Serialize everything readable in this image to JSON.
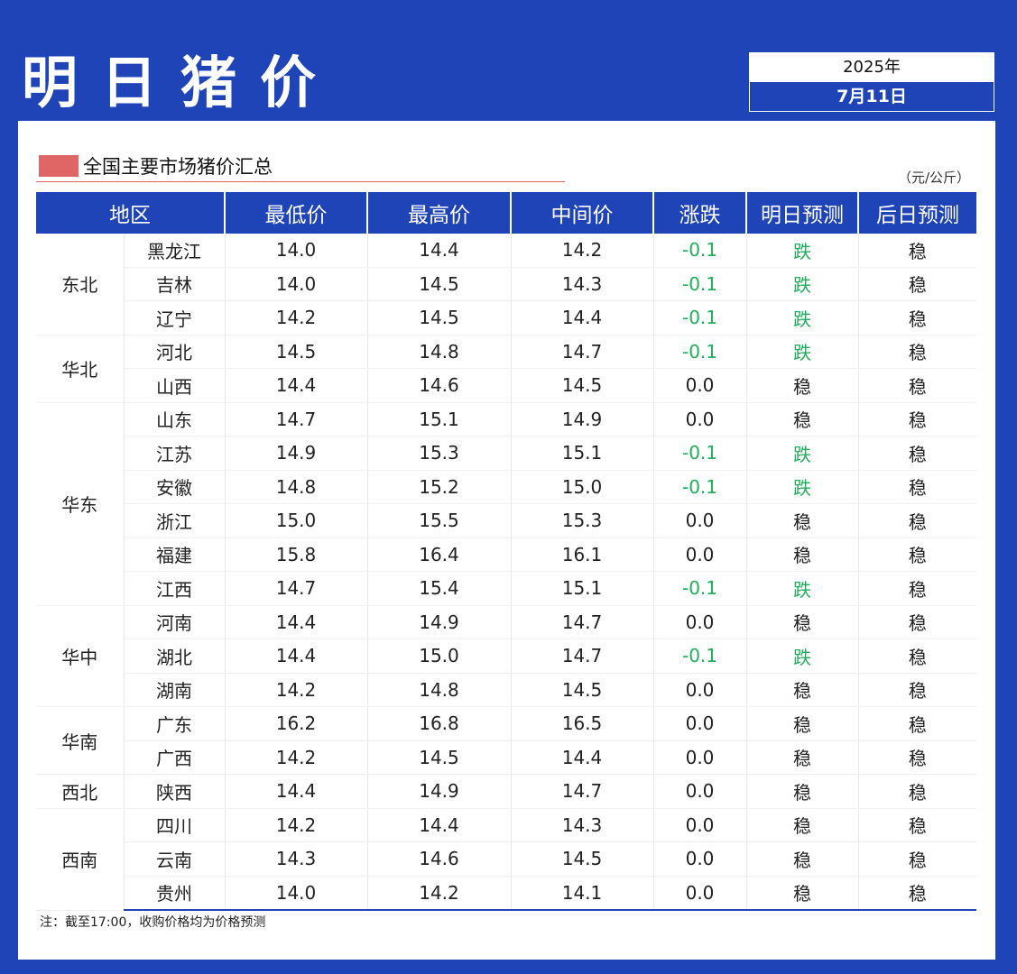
{
  "header": {
    "title": "明日猪价",
    "year": "2025年",
    "date": "7月11日"
  },
  "section": {
    "title": "全国主要市场猪价汇总",
    "unit": "（元/公斤）"
  },
  "columns": [
    "地区",
    "最低价",
    "最高价",
    "中间价",
    "涨跌",
    "明日预测",
    "后日预测"
  ],
  "groups": [
    {
      "region": "东北",
      "rows": [
        {
          "province": "黑龙江",
          "low": "14.0",
          "high": "14.4",
          "mid": "14.2",
          "change": "-0.1",
          "tomorrow": "跌",
          "after": "稳"
        },
        {
          "province": "吉林",
          "low": "14.0",
          "high": "14.5",
          "mid": "14.3",
          "change": "-0.1",
          "tomorrow": "跌",
          "after": "稳"
        },
        {
          "province": "辽宁",
          "low": "14.2",
          "high": "14.5",
          "mid": "14.4",
          "change": "-0.1",
          "tomorrow": "跌",
          "after": "稳"
        }
      ]
    },
    {
      "region": "华北",
      "rows": [
        {
          "province": "河北",
          "low": "14.5",
          "high": "14.8",
          "mid": "14.7",
          "change": "-0.1",
          "tomorrow": "跌",
          "after": "稳"
        },
        {
          "province": "山西",
          "low": "14.4",
          "high": "14.6",
          "mid": "14.5",
          "change": "0.0",
          "tomorrow": "稳",
          "after": "稳"
        }
      ]
    },
    {
      "region": "华东",
      "rows": [
        {
          "province": "山东",
          "low": "14.7",
          "high": "15.1",
          "mid": "14.9",
          "change": "0.0",
          "tomorrow": "稳",
          "after": "稳"
        },
        {
          "province": "江苏",
          "low": "14.9",
          "high": "15.3",
          "mid": "15.1",
          "change": "-0.1",
          "tomorrow": "跌",
          "after": "稳"
        },
        {
          "province": "安徽",
          "low": "14.8",
          "high": "15.2",
          "mid": "15.0",
          "change": "-0.1",
          "tomorrow": "跌",
          "after": "稳"
        },
        {
          "province": "浙江",
          "low": "15.0",
          "high": "15.5",
          "mid": "15.3",
          "change": "0.0",
          "tomorrow": "稳",
          "after": "稳"
        },
        {
          "province": "福建",
          "low": "15.8",
          "high": "16.4",
          "mid": "16.1",
          "change": "0.0",
          "tomorrow": "稳",
          "after": "稳"
        },
        {
          "province": "江西",
          "low": "14.7",
          "high": "15.4",
          "mid": "15.1",
          "change": "-0.1",
          "tomorrow": "跌",
          "after": "稳"
        }
      ]
    },
    {
      "region": "华中",
      "rows": [
        {
          "province": "河南",
          "low": "14.4",
          "high": "14.9",
          "mid": "14.7",
          "change": "0.0",
          "tomorrow": "稳",
          "after": "稳"
        },
        {
          "province": "湖北",
          "low": "14.4",
          "high": "15.0",
          "mid": "14.7",
          "change": "-0.1",
          "tomorrow": "跌",
          "after": "稳"
        },
        {
          "province": "湖南",
          "low": "14.2",
          "high": "14.8",
          "mid": "14.5",
          "change": "0.0",
          "tomorrow": "稳",
          "after": "稳"
        }
      ]
    },
    {
      "region": "华南",
      "rows": [
        {
          "province": "广东",
          "low": "16.2",
          "high": "16.8",
          "mid": "16.5",
          "change": "0.0",
          "tomorrow": "稳",
          "after": "稳"
        },
        {
          "province": "广西",
          "low": "14.2",
          "high": "14.5",
          "mid": "14.4",
          "change": "0.0",
          "tomorrow": "稳",
          "after": "稳"
        }
      ]
    },
    {
      "region": "西北",
      "rows": [
        {
          "province": "陕西",
          "low": "14.4",
          "high": "14.9",
          "mid": "14.7",
          "change": "0.0",
          "tomorrow": "稳",
          "after": "稳"
        }
      ]
    },
    {
      "region": "西南",
      "rows": [
        {
          "province": "四川",
          "low": "14.2",
          "high": "14.4",
          "mid": "14.3",
          "change": "0.0",
          "tomorrow": "稳",
          "after": "稳"
        },
        {
          "province": "云南",
          "low": "14.3",
          "high": "14.6",
          "mid": "14.5",
          "change": "0.0",
          "tomorrow": "稳",
          "after": "稳"
        },
        {
          "province": "贵州",
          "low": "14.0",
          "high": "14.2",
          "mid": "14.1",
          "change": "0.0",
          "tomorrow": "稳",
          "after": "稳"
        }
      ]
    }
  ],
  "note": "注：截至17:00，收购价格均为价格预测",
  "colors": {
    "brand_blue": "#1f44b8",
    "down_green": "#1fae5a",
    "accent_red": "#e06666"
  }
}
